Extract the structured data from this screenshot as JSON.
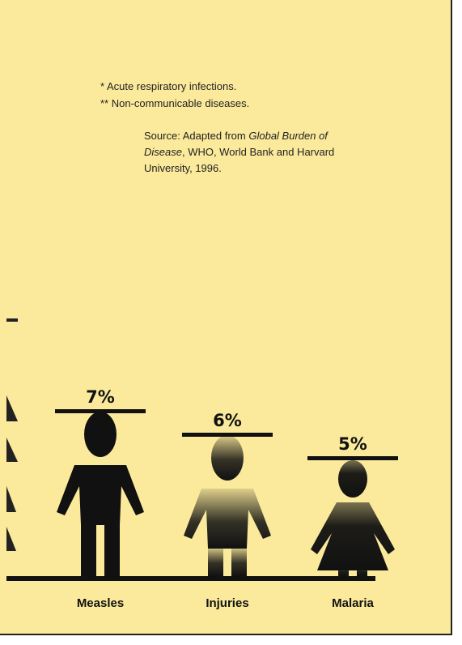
{
  "notes": {
    "footnote_1": "* Acute respiratory infections.",
    "footnote_2": "** Non-communicable diseases.",
    "source_prefix": "Source: Adapted from ",
    "source_title": "Global Burden of Disease",
    "source_suffix": ", WHO, World Bank and Harvard University, 1996."
  },
  "colors": {
    "background": "#fbea9b",
    "figure": "#111111"
  },
  "chart_data": {
    "type": "bar",
    "categories": [
      "Measles",
      "Injuries",
      "Malaria"
    ],
    "values": [
      7,
      6,
      5
    ],
    "value_labels": [
      "7%",
      "6%",
      "5%"
    ],
    "unit": "%",
    "figure_icons": [
      "male-figure-icon",
      "faded-male-figure-icon",
      "female-figure-icon"
    ]
  }
}
